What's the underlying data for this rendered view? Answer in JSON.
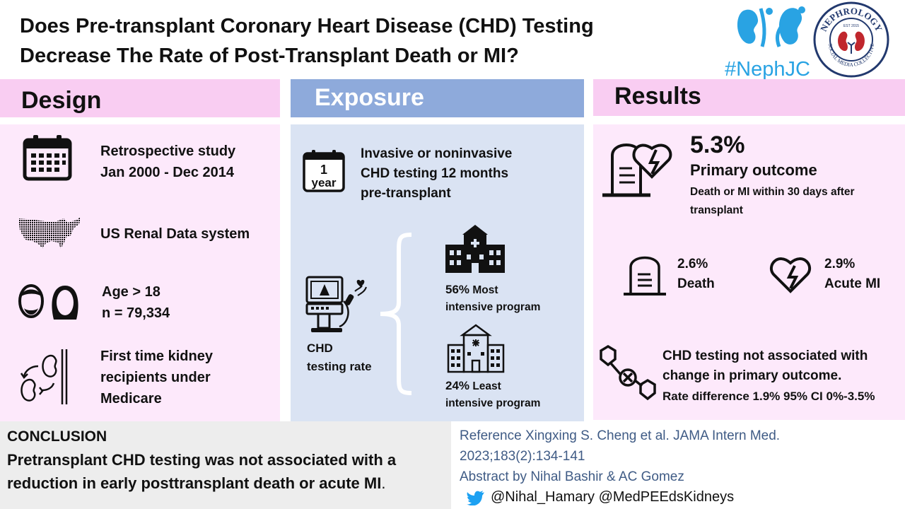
{
  "title_line1": "Does Pre-transplant Coronary Heart Disease (CHD) Testing",
  "title_line2": "Decrease The Rate of Post-Transplant Death or MI?",
  "branding": {
    "hashtag": "#NephJC",
    "seal_top": "NEPHROLOGY",
    "seal_bottom": "SOCIAL MEDIA COLLECTIVE",
    "seal_year": "EST 2015"
  },
  "design": {
    "header": "Design",
    "items": [
      {
        "icon": "calendar-icon",
        "lines": [
          "Retrospective study",
          "Jan 2000 - Dec 2014"
        ]
      },
      {
        "icon": "us-map-icon",
        "lines": [
          "US Renal Data system"
        ]
      },
      {
        "icon": "people-icon",
        "lines": [
          "Age > 18",
          "n = 79,334"
        ]
      },
      {
        "icon": "kidney-transplant-icon",
        "lines": [
          "First time kidney",
          "recipients under",
          "Medicare"
        ]
      }
    ]
  },
  "exposure": {
    "header": "Exposure",
    "calendar_badge_top": "1",
    "calendar_badge_bottom": "year",
    "testing_lines": [
      "Invasive or noninvasive",
      "CHD testing 12 months",
      "pre-transplant"
    ],
    "rate_label_lines": [
      "CHD",
      "testing rate"
    ],
    "most": {
      "percent": "56%",
      "label_a": "Most",
      "label_b": "intensive program"
    },
    "least": {
      "percent": "24%",
      "label_a": "Least",
      "label_b": "intensive program"
    }
  },
  "results": {
    "header": "Results",
    "primary_percent": "5.3%",
    "primary_label": "Primary outcome",
    "primary_desc_lines": [
      "Death or MI within 30 days after",
      "transplant"
    ],
    "death_percent": "2.6%",
    "death_label": "Death",
    "mi_percent": "2.9%",
    "mi_label": "Acute MI",
    "assoc_lines": [
      "CHD testing not associated with",
      "change in primary outcome."
    ],
    "rate_diff": "Rate difference 1.9% 95% CI 0%-3.5%"
  },
  "conclusion": {
    "heading": "CONCLUSION",
    "line1": "Pretransplant CHD testing was not associated with a",
    "line2": "reduction in early posttransplant death or acute MI",
    "period": "."
  },
  "reference": {
    "line1": "Reference Xingxing S. Cheng et al. JAMA Intern Med.",
    "line2": "2023;183(2):134-141",
    "line3": "Abstract by Nihal Bashir & AC Gomez",
    "handles": "@Nihal_Hamary @MedPEEdsKidneys"
  },
  "colors": {
    "pink_header": "#f9cdf2",
    "pink_panel": "#fde9fb",
    "blue_header": "#8eaadb",
    "blue_panel": "#dae3f3",
    "kidney_blue": "#29a3e3",
    "seal_navy": "#22396e",
    "seal_red": "#c0272d",
    "reference_text": "#3f5b85",
    "twitter": "#1da1f2"
  }
}
